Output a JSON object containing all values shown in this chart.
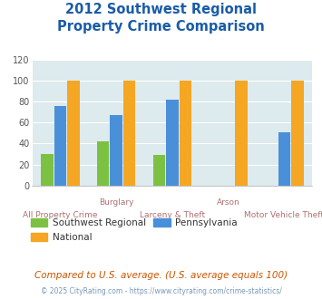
{
  "title": "2012 Southwest Regional\nProperty Crime Comparison",
  "categories": [
    "All Property Crime",
    "Burglary",
    "Larceny & Theft",
    "Arson",
    "Motor Vehicle Theft"
  ],
  "southwest_regional": [
    30,
    42,
    29,
    0,
    0
  ],
  "pennsylvania": [
    76,
    67,
    82,
    0,
    51
  ],
  "national": [
    100,
    100,
    100,
    100,
    100
  ],
  "bar_colors": {
    "southwest": "#7dc142",
    "pennsylvania": "#4a90d9",
    "national": "#f5a623"
  },
  "ylim": [
    0,
    120
  ],
  "yticks": [
    0,
    20,
    40,
    60,
    80,
    100,
    120
  ],
  "plot_bg": "#ddeaee",
  "title_color": "#1a5ca8",
  "xlabel_color_upper": "#b07070",
  "xlabel_color_lower": "#b07070",
  "note": "Compared to U.S. average. (U.S. average equals 100)",
  "footer": "© 2025 CityRating.com - https://www.cityrating.com/crime-statistics/",
  "note_color": "#cc5500",
  "footer_color": "#7799bb"
}
